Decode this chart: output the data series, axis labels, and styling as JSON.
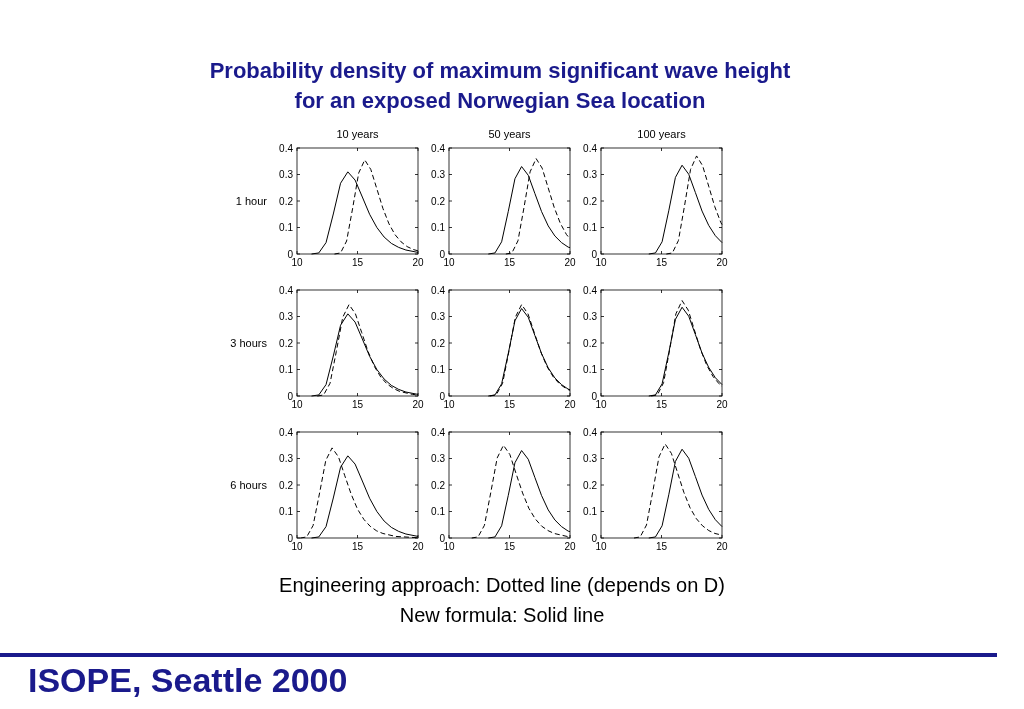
{
  "chart_data": [
    {
      "type": "line",
      "title": "Probability density of maximum significant wave height for an exposed Norwegian Sea location",
      "subtitle": "10 years",
      "ylabel": "1 hour",
      "annotations": [
        "Engineering approach: Dotted line (depends on D)",
        "New formula: Solid line",
        "ISOPE, Seattle 2000"
      ],
      "xlim": [
        10,
        20
      ],
      "ylim": [
        0,
        0.4
      ],
      "xticks": [
        10,
        15,
        20
      ],
      "yticks": [
        0,
        0.1,
        0.2,
        0.3,
        0.4
      ],
      "series": [
        {
          "color": "#000000",
          "line_style": "solid",
          "x": [
            11.2,
            11.8,
            12.4,
            13.0,
            13.6,
            14.2,
            14.8,
            15.4,
            16.0,
            16.6,
            17.2,
            17.8,
            18.4,
            19.0,
            20.0
          ],
          "values": [
            0,
            0.004,
            0.043,
            0.151,
            0.267,
            0.31,
            0.279,
            0.215,
            0.15,
            0.1,
            0.064,
            0.04,
            0.025,
            0.015,
            0.006
          ]
        },
        {
          "color": "#000000",
          "line_style": "dashed",
          "x": [
            13.1,
            13.6,
            14.1,
            14.6,
            15.1,
            15.6,
            16.1,
            16.6,
            17.1,
            17.6,
            18.1,
            18.6,
            19.1,
            19.6,
            20.0
          ],
          "values": [
            0,
            0.004,
            0.049,
            0.173,
            0.306,
            0.355,
            0.319,
            0.246,
            0.172,
            0.114,
            0.073,
            0.046,
            0.028,
            0.017,
            0.012
          ]
        }
      ]
    },
    {
      "type": "line",
      "subtitle": "50 years",
      "xlim": [
        10,
        20
      ],
      "ylim": [
        0,
        0.4
      ],
      "xticks": [
        10,
        15,
        20
      ],
      "yticks": [
        0,
        0.1,
        0.2,
        0.3,
        0.4
      ],
      "series": [
        {
          "color": "#000000",
          "line_style": "solid",
          "x": [
            13.25,
            13.8,
            14.35,
            14.9,
            15.45,
            16.0,
            16.55,
            17.1,
            17.65,
            18.2,
            18.75,
            19.3,
            19.85,
            20.0
          ],
          "values": [
            0,
            0.004,
            0.046,
            0.161,
            0.284,
            0.33,
            0.297,
            0.228,
            0.16,
            0.106,
            0.068,
            0.043,
            0.026,
            0.024
          ]
        },
        {
          "color": "#000000",
          "line_style": "dashed",
          "x": [
            14.7,
            15.2,
            15.7,
            16.2,
            16.7,
            17.2,
            17.7,
            18.2,
            18.7,
            19.2,
            19.7,
            20.0
          ],
          "values": [
            0,
            0.004,
            0.05,
            0.176,
            0.31,
            0.36,
            0.324,
            0.249,
            0.175,
            0.116,
            0.074,
            0.057
          ]
        }
      ]
    },
    {
      "type": "line",
      "subtitle": "100 years",
      "xlim": [
        10,
        20
      ],
      "ylim": [
        0,
        0.4
      ],
      "xticks": [
        10,
        15,
        20
      ],
      "yticks": [
        0,
        0.1,
        0.2,
        0.3,
        0.4
      ],
      "series": [
        {
          "color": "#000000",
          "line_style": "solid",
          "x": [
            13.95,
            14.5,
            15.05,
            15.6,
            16.15,
            16.7,
            17.25,
            17.8,
            18.35,
            18.9,
            19.45,
            20.0
          ],
          "values": [
            0,
            0.004,
            0.046,
            0.163,
            0.289,
            0.335,
            0.301,
            0.232,
            0.162,
            0.108,
            0.069,
            0.043
          ]
        },
        {
          "color": "#000000",
          "line_style": "dashed",
          "x": [
            15.4,
            15.9,
            16.4,
            16.9,
            17.4,
            17.9,
            18.4,
            18.9,
            19.4,
            19.9,
            20.0
          ],
          "values": [
            0,
            0.004,
            0.051,
            0.181,
            0.319,
            0.37,
            0.333,
            0.256,
            0.179,
            0.119,
            0.111
          ]
        }
      ]
    },
    {
      "type": "line",
      "ylabel": "3 hours",
      "xlim": [
        10,
        20
      ],
      "ylim": [
        0,
        0.4
      ],
      "xticks": [
        10,
        15,
        20
      ],
      "yticks": [
        0,
        0.1,
        0.2,
        0.3,
        0.4
      ],
      "series": [
        {
          "color": "#000000",
          "line_style": "solid",
          "x": [
            11.2,
            11.8,
            12.4,
            13.0,
            13.6,
            14.2,
            14.8,
            15.4,
            16.0,
            16.6,
            17.2,
            17.8,
            18.4,
            19.0,
            20.0
          ],
          "values": [
            0,
            0.004,
            0.043,
            0.151,
            0.267,
            0.31,
            0.279,
            0.215,
            0.15,
            0.1,
            0.064,
            0.04,
            0.025,
            0.015,
            0.006
          ]
        },
        {
          "color": "#000000",
          "line_style": "dashed",
          "x": [
            11.68,
            12.2,
            12.73,
            13.25,
            13.78,
            14.3,
            14.83,
            15.35,
            15.88,
            16.4,
            16.93,
            17.45,
            17.98,
            18.5,
            19.55,
            20.0
          ],
          "values": [
            0,
            0.004,
            0.048,
            0.168,
            0.297,
            0.345,
            0.31,
            0.239,
            0.167,
            0.111,
            0.071,
            0.045,
            0.028,
            0.017,
            0.006,
            0.004
          ]
        }
      ]
    },
    {
      "type": "line",
      "xlim": [
        10,
        20
      ],
      "ylim": [
        0,
        0.4
      ],
      "xticks": [
        10,
        15,
        20
      ],
      "yticks": [
        0,
        0.1,
        0.2,
        0.3,
        0.4
      ],
      "series": [
        {
          "color": "#000000",
          "line_style": "solid",
          "x": [
            13.25,
            13.8,
            14.35,
            14.9,
            15.45,
            16.0,
            16.55,
            17.1,
            17.65,
            18.2,
            18.75,
            19.3,
            19.85,
            20.0
          ],
          "values": [
            0,
            0.004,
            0.046,
            0.161,
            0.284,
            0.33,
            0.297,
            0.228,
            0.16,
            0.106,
            0.068,
            0.043,
            0.026,
            0.024
          ]
        },
        {
          "color": "#000000",
          "line_style": "dashed",
          "x": [
            13.38,
            13.9,
            14.43,
            14.95,
            15.48,
            16.0,
            16.53,
            17.05,
            17.58,
            18.1,
            18.63,
            19.15,
            19.68,
            20.0
          ],
          "values": [
            0,
            0.004,
            0.048,
            0.168,
            0.297,
            0.345,
            0.31,
            0.239,
            0.167,
            0.111,
            0.071,
            0.045,
            0.028,
            0.021
          ]
        }
      ]
    },
    {
      "type": "line",
      "xlim": [
        10,
        20
      ],
      "ylim": [
        0,
        0.4
      ],
      "xticks": [
        10,
        15,
        20
      ],
      "yticks": [
        0,
        0.1,
        0.2,
        0.3,
        0.4
      ],
      "series": [
        {
          "color": "#000000",
          "line_style": "solid",
          "x": [
            13.95,
            14.5,
            15.05,
            15.6,
            16.15,
            16.7,
            17.25,
            17.8,
            18.35,
            18.9,
            19.45,
            20.0
          ],
          "values": [
            0,
            0.004,
            0.046,
            0.163,
            0.289,
            0.335,
            0.301,
            0.232,
            0.162,
            0.108,
            0.069,
            0.043
          ]
        },
        {
          "color": "#000000",
          "line_style": "dashed",
          "x": [
            14.15,
            14.66,
            15.17,
            15.68,
            16.19,
            16.7,
            17.21,
            17.72,
            18.23,
            18.74,
            19.25,
            19.76,
            20.0
          ],
          "values": [
            0,
            0.004,
            0.05,
            0.176,
            0.31,
            0.36,
            0.324,
            0.249,
            0.175,
            0.116,
            0.074,
            0.046,
            0.036
          ]
        }
      ]
    },
    {
      "type": "line",
      "ylabel": "6 hours",
      "xlim": [
        10,
        20
      ],
      "ylim": [
        0,
        0.4
      ],
      "xticks": [
        10,
        15,
        20
      ],
      "yticks": [
        0,
        0.1,
        0.2,
        0.3,
        0.4
      ],
      "series": [
        {
          "color": "#000000",
          "line_style": "solid",
          "x": [
            11.2,
            11.8,
            12.4,
            13.0,
            13.6,
            14.2,
            14.8,
            15.4,
            16.0,
            16.6,
            17.2,
            17.8,
            18.4,
            19.0,
            20.0
          ],
          "values": [
            0,
            0.004,
            0.043,
            0.151,
            0.267,
            0.31,
            0.279,
            0.215,
            0.15,
            0.1,
            0.064,
            0.04,
            0.025,
            0.015,
            0.006
          ]
        },
        {
          "color": "#000000",
          "line_style": "dashed",
          "x": [
            10.28,
            10.8,
            11.33,
            11.85,
            12.38,
            12.9,
            13.43,
            13.95,
            14.48,
            15.0,
            15.53,
            16.05,
            16.58,
            17.1,
            18.15,
            20.0
          ],
          "values": [
            0,
            0.004,
            0.047,
            0.166,
            0.293,
            0.34,
            0.306,
            0.235,
            0.165,
            0.109,
            0.07,
            0.044,
            0.027,
            0.017,
            0.006,
            0.001
          ]
        }
      ]
    },
    {
      "type": "line",
      "xlim": [
        10,
        20
      ],
      "ylim": [
        0,
        0.4
      ],
      "xticks": [
        10,
        15,
        20
      ],
      "yticks": [
        0,
        0.1,
        0.2,
        0.3,
        0.4
      ],
      "series": [
        {
          "color": "#000000",
          "line_style": "solid",
          "x": [
            13.25,
            13.8,
            14.35,
            14.9,
            15.45,
            16.0,
            16.55,
            17.1,
            17.65,
            18.2,
            18.75,
            19.3,
            19.85,
            20.0
          ],
          "values": [
            0,
            0.004,
            0.046,
            0.161,
            0.284,
            0.33,
            0.297,
            0.228,
            0.16,
            0.106,
            0.068,
            0.043,
            0.026,
            0.024
          ]
        },
        {
          "color": "#000000",
          "line_style": "dashed",
          "x": [
            11.88,
            12.4,
            12.93,
            13.45,
            13.98,
            14.5,
            15.03,
            15.55,
            16.08,
            16.6,
            17.13,
            17.65,
            18.18,
            18.7,
            19.75,
            20.0
          ],
          "values": [
            0,
            0.004,
            0.048,
            0.171,
            0.302,
            0.35,
            0.315,
            0.242,
            0.17,
            0.112,
            0.072,
            0.045,
            0.028,
            0.017,
            0.006,
            0.005
          ]
        }
      ]
    },
    {
      "type": "line",
      "xlim": [
        10,
        20
      ],
      "ylim": [
        0,
        0.4
      ],
      "xticks": [
        10,
        15,
        20
      ],
      "yticks": [
        0,
        0.1,
        0.2,
        0.3,
        0.4
      ],
      "series": [
        {
          "color": "#000000",
          "line_style": "solid",
          "x": [
            13.95,
            14.5,
            15.05,
            15.6,
            16.15,
            16.7,
            17.25,
            17.8,
            18.35,
            18.9,
            19.45,
            20.0
          ],
          "values": [
            0,
            0.004,
            0.046,
            0.163,
            0.289,
            0.335,
            0.301,
            0.232,
            0.162,
            0.108,
            0.069,
            0.043
          ]
        },
        {
          "color": "#000000",
          "line_style": "dashed",
          "x": [
            12.73,
            13.24,
            13.76,
            14.27,
            14.79,
            15.3,
            15.82,
            16.33,
            16.85,
            17.36,
            17.88,
            18.39,
            18.91,
            19.42,
            20.0
          ],
          "values": [
            0,
            0.004,
            0.049,
            0.173,
            0.306,
            0.355,
            0.319,
            0.246,
            0.172,
            0.114,
            0.073,
            0.046,
            0.028,
            0.017,
            0.011
          ]
        }
      ]
    }
  ]
}
